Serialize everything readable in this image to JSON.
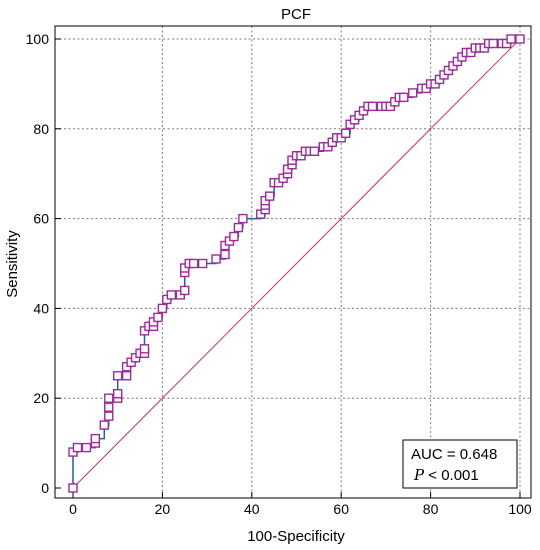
{
  "chart_data": {
    "type": "line",
    "title": "PCF",
    "xlabel": "100-Specificity",
    "ylabel": "Sensitivity",
    "xlim": [
      0,
      100
    ],
    "ylim": [
      0,
      100
    ],
    "xticks": [
      "0",
      "20",
      "40",
      "60",
      "80",
      "100"
    ],
    "yticks": [
      "0",
      "20",
      "40",
      "60",
      "80",
      "100"
    ],
    "grid": true,
    "annotation": {
      "auc_text": "AUC = 0.648",
      "p_symbol": "P",
      "p_text": " < 0.001",
      "placement": "bottom-right"
    },
    "colors": {
      "roc_line": "#1f5fa8",
      "marker": "#a0289c",
      "diagonal": "#e0304a"
    },
    "series": [
      {
        "values": [
          [
            0,
            0
          ],
          [
            0,
            8
          ],
          [
            1,
            9
          ],
          [
            3,
            9
          ],
          [
            5,
            10
          ],
          [
            5,
            11
          ],
          [
            7,
            14
          ],
          [
            8,
            16
          ],
          [
            8,
            18
          ],
          [
            8,
            20
          ],
          [
            10,
            20
          ],
          [
            10,
            21
          ],
          [
            10,
            25
          ],
          [
            12,
            25
          ],
          [
            12,
            27
          ],
          [
            13,
            28
          ],
          [
            14,
            29
          ],
          [
            15,
            30
          ],
          [
            16,
            30
          ],
          [
            16,
            31
          ],
          [
            16,
            35
          ],
          [
            17,
            36
          ],
          [
            18,
            36
          ],
          [
            18,
            37
          ],
          [
            19,
            38
          ],
          [
            20,
            40
          ],
          [
            21,
            42
          ],
          [
            22,
            43
          ],
          [
            24,
            43
          ],
          [
            25,
            44
          ],
          [
            25,
            48
          ],
          [
            25,
            49
          ],
          [
            26,
            50
          ],
          [
            27,
            50
          ],
          [
            29,
            50
          ],
          [
            32,
            51
          ],
          [
            34,
            52
          ],
          [
            34,
            54
          ],
          [
            35,
            55
          ],
          [
            36,
            56
          ],
          [
            37,
            58
          ],
          [
            38,
            60
          ],
          [
            42,
            61
          ],
          [
            43,
            62
          ],
          [
            43,
            63
          ],
          [
            43,
            64
          ],
          [
            44,
            65
          ],
          [
            45,
            68
          ],
          [
            46,
            68
          ],
          [
            47,
            69
          ],
          [
            48,
            70
          ],
          [
            48,
            71
          ],
          [
            49,
            72
          ],
          [
            49,
            73
          ],
          [
            50,
            74
          ],
          [
            51,
            74
          ],
          [
            52,
            75
          ],
          [
            53,
            75
          ],
          [
            54,
            75
          ],
          [
            56,
            76
          ],
          [
            57,
            76
          ],
          [
            58,
            77
          ],
          [
            59,
            78
          ],
          [
            60,
            78
          ],
          [
            61,
            79
          ],
          [
            62,
            81
          ],
          [
            63,
            82
          ],
          [
            64,
            83
          ],
          [
            65,
            84
          ],
          [
            66,
            85
          ],
          [
            67,
            85
          ],
          [
            69,
            85
          ],
          [
            70,
            85
          ],
          [
            71,
            85
          ],
          [
            72,
            86
          ],
          [
            73,
            87
          ],
          [
            74,
            87
          ],
          [
            76,
            88
          ],
          [
            78,
            89
          ],
          [
            79,
            89
          ],
          [
            80,
            90
          ],
          [
            81,
            90
          ],
          [
            82,
            91
          ],
          [
            83,
            92
          ],
          [
            84,
            93
          ],
          [
            85,
            94
          ],
          [
            86,
            95
          ],
          [
            87,
            96
          ],
          [
            88,
            97
          ],
          [
            89,
            97
          ],
          [
            90,
            98
          ],
          [
            91,
            98
          ],
          [
            92,
            98
          ],
          [
            93,
            99
          ],
          [
            94,
            99
          ],
          [
            96,
            99
          ],
          [
            97,
            99
          ],
          [
            98,
            100
          ],
          [
            100,
            100
          ]
        ]
      }
    ]
  }
}
